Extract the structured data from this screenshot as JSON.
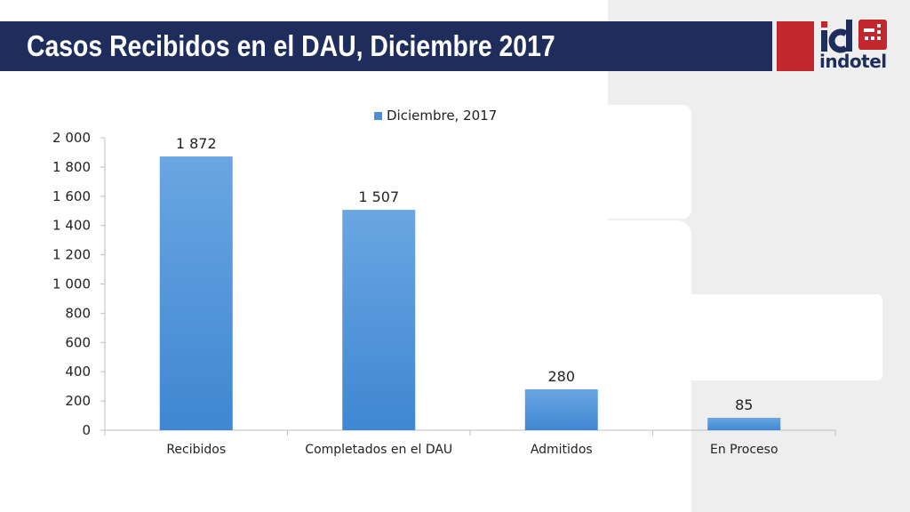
{
  "header": {
    "title": "Casos Recibidos en el DAU, Diciembre 2017"
  },
  "logo": {
    "mark": "id",
    "word": "indotel",
    "colors": {
      "red": "#c1272d",
      "navy": "#1f2d5c"
    }
  },
  "colors": {
    "title_bar": "#1f2d5c",
    "bar": "#4a90d9",
    "panel": "#eeeeee"
  },
  "chart_data": {
    "type": "bar",
    "title": "",
    "xlabel": "",
    "ylabel": "",
    "categories": [
      "Recibidos",
      "Completados en el DAU",
      "Admitidos",
      "En Proceso"
    ],
    "series": [
      {
        "name": "Diciembre, 2017",
        "values": [
          1872,
          1507,
          280,
          85
        ]
      }
    ],
    "data_labels": [
      "1 872",
      "1 507",
      "280",
      "85"
    ],
    "ylim": [
      0,
      2000
    ],
    "yticks": [
      0,
      200,
      400,
      600,
      800,
      1000,
      1200,
      1400,
      1600,
      1800,
      2000
    ],
    "ytick_labels": [
      "0",
      "200",
      "400",
      "600",
      "800",
      "1 000",
      "1 200",
      "1 400",
      "1 600",
      "1 800",
      "2 000"
    ],
    "grid": false,
    "legend_position": "top"
  }
}
